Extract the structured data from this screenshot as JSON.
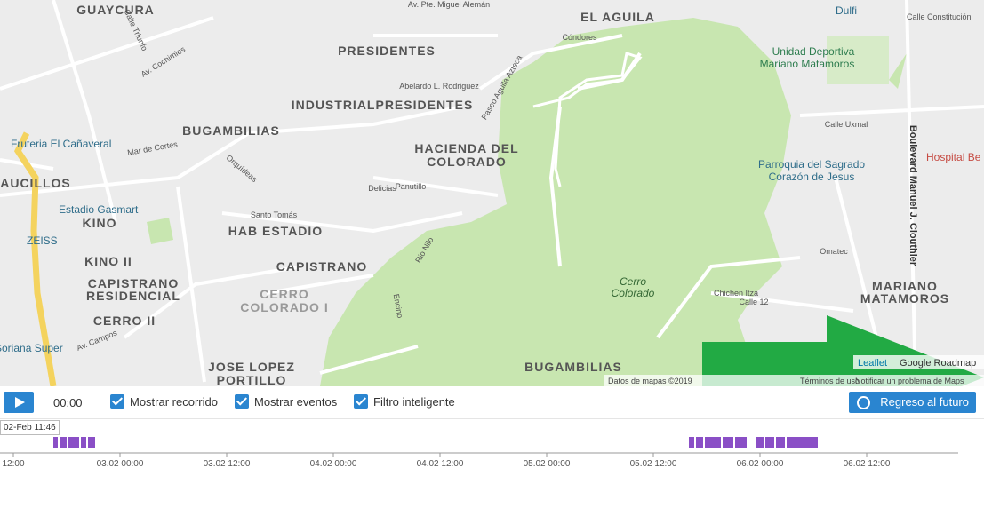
{
  "map": {
    "labels": [
      {
        "text": "GUAYCURA"
      },
      {
        "text": "EL AGUILA"
      },
      {
        "text": "PRESIDENTES"
      },
      {
        "text": "INDUSTRIALPRESIDENTES"
      },
      {
        "text": "BUGAMBILIAS"
      },
      {
        "text": "HACIENDA DEL"
      },
      {
        "text": "COLORADO"
      },
      {
        "text": "AUCILLOS"
      },
      {
        "text": "KINO"
      },
      {
        "text": "HAB ESTADIO"
      },
      {
        "text": "KINO II"
      },
      {
        "text": "CAPISTRANO"
      },
      {
        "text": "CAPISTRANO"
      },
      {
        "text": "RESIDENCIAL"
      },
      {
        "text": "CERRO"
      },
      {
        "text": "COLORADO I"
      },
      {
        "text": "CERRO II"
      },
      {
        "text": "JOSE LOPEZ"
      },
      {
        "text": "PORTILLO"
      },
      {
        "text": "BUGAMBILIAS"
      },
      {
        "text": "MARIANO"
      },
      {
        "text": "MATAMOROS"
      },
      {
        "text": "Fruteria El Cañaveral"
      },
      {
        "text": "Estadio Gasmart"
      },
      {
        "text": "ZEISS"
      },
      {
        "text": "Soriana Super"
      },
      {
        "text": "Dulfi"
      },
      {
        "text": "Unidad Deportiva"
      },
      {
        "text": "Mariano Matamoros"
      },
      {
        "text": "Parroquia del Sagrado"
      },
      {
        "text": "Corazón de Jesus"
      },
      {
        "text": "Hospital Be"
      },
      {
        "text": "Cerro"
      },
      {
        "text": "Colorado"
      },
      {
        "text": "Calle Constitución"
      },
      {
        "text": "Av. Cochimies"
      },
      {
        "text": "Boulevard Manuel J. Clouthier"
      },
      {
        "text": "Av. Campos"
      },
      {
        "text": "Calle Uxmal"
      },
      {
        "text": "Mar de Cortes"
      },
      {
        "text": "Delicias"
      },
      {
        "text": "Panutillo"
      },
      {
        "text": "Santo Tomás"
      },
      {
        "text": "Orquídeas"
      },
      {
        "text": "Rio Nilo"
      },
      {
        "text": "Encino"
      },
      {
        "text": "Chichen Itza"
      },
      {
        "text": "Calle 12"
      },
      {
        "text": "Omatec"
      },
      {
        "text": "Av. Pte. Miguel Alemán"
      },
      {
        "text": "Abelardo L. Rodriguez"
      },
      {
        "text": "Paseo Aguila Azteca"
      },
      {
        "text": "Calle Triunfo"
      },
      {
        "text": "Cóndores"
      }
    ],
    "attribution": {
      "data": "Datos de mapas ©2019",
      "terms": "Términos de uso",
      "report": "Notificar un problema de Maps",
      "leaflet": "Leaflet",
      "layer": "Google Roadmap"
    }
  },
  "controls": {
    "time": "00:00",
    "checkboxes": [
      "Mostrar recorrido",
      "Mostrar eventos",
      "Filtro inteligente"
    ],
    "button": "Regreso al futuro"
  },
  "timeline": {
    "tooltip": "02-Feb 11:46",
    "ticks": [
      "12:00",
      "03.02 00:00",
      "03.02 12:00",
      "04.02 00:00",
      "04.02 12:00",
      "05.02 00:00",
      "05.02 12:00",
      "06.02 00:00",
      "06.02 12:00"
    ]
  }
}
